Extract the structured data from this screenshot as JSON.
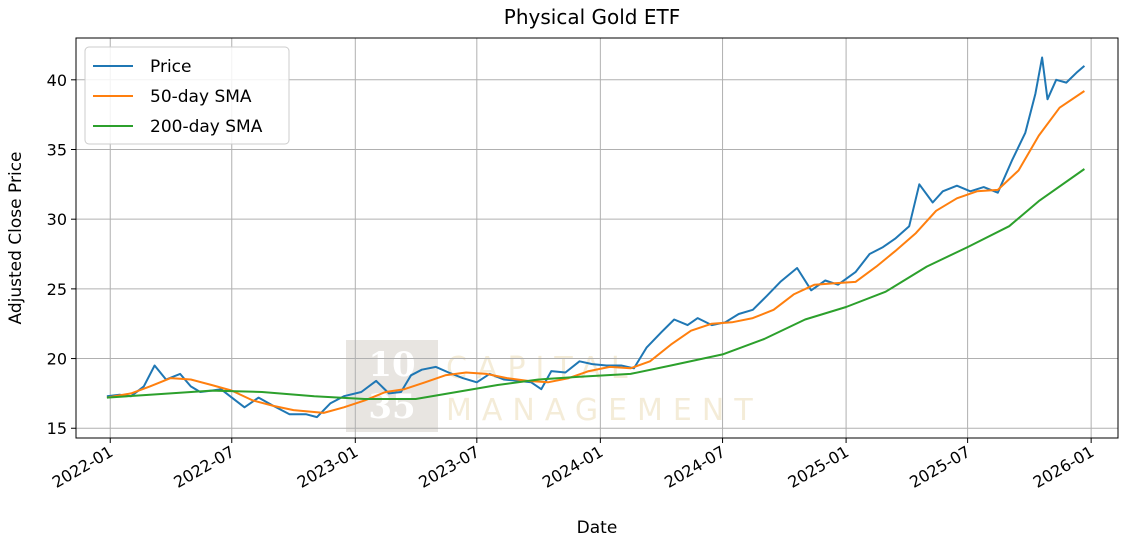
{
  "chart_data": {
    "type": "line",
    "title": "Physical Gold ETF",
    "xlabel": "Date",
    "ylabel": "Adjusted Close Price",
    "x_ticks": [
      "2022-01",
      "2022-07",
      "2023-01",
      "2023-07",
      "2024-01",
      "2024-07",
      "2025-01",
      "2025-07",
      "2026-01"
    ],
    "y_ticks": [
      15,
      20,
      25,
      30,
      35,
      40
    ],
    "xlim": [
      "2021-11-11",
      "2026-02-10"
    ],
    "ylim": [
      14.3,
      43.0
    ],
    "grid": true,
    "legend_position": "top-left",
    "series": [
      {
        "name": "Price",
        "color": "#1f77b4",
        "points": [
          [
            "2021-12-27",
            17.3
          ],
          [
            "2022-01-15",
            17.4
          ],
          [
            "2022-02-01",
            17.3
          ],
          [
            "2022-02-20",
            18.0
          ],
          [
            "2022-03-08",
            19.5
          ],
          [
            "2022-03-25",
            18.5
          ],
          [
            "2022-04-15",
            18.9
          ],
          [
            "2022-05-01",
            18.0
          ],
          [
            "2022-05-15",
            17.6
          ],
          [
            "2022-06-01",
            17.7
          ],
          [
            "2022-06-15",
            17.8
          ],
          [
            "2022-07-01",
            17.2
          ],
          [
            "2022-07-20",
            16.5
          ],
          [
            "2022-08-10",
            17.2
          ],
          [
            "2022-09-01",
            16.6
          ],
          [
            "2022-09-25",
            16.0
          ],
          [
            "2022-10-20",
            16.0
          ],
          [
            "2022-11-05",
            15.8
          ],
          [
            "2022-11-25",
            16.8
          ],
          [
            "2022-12-15",
            17.3
          ],
          [
            "2023-01-10",
            17.6
          ],
          [
            "2023-02-01",
            18.4
          ],
          [
            "2023-02-20",
            17.5
          ],
          [
            "2023-03-10",
            17.6
          ],
          [
            "2023-03-25",
            18.8
          ],
          [
            "2023-04-10",
            19.2
          ],
          [
            "2023-05-01",
            19.4
          ],
          [
            "2023-05-20",
            19.0
          ],
          [
            "2023-06-10",
            18.6
          ],
          [
            "2023-07-01",
            18.3
          ],
          [
            "2023-07-20",
            18.9
          ],
          [
            "2023-08-10",
            18.5
          ],
          [
            "2023-09-01",
            18.4
          ],
          [
            "2023-09-20",
            18.3
          ],
          [
            "2023-10-05",
            17.8
          ],
          [
            "2023-10-20",
            19.1
          ],
          [
            "2023-11-10",
            19.0
          ],
          [
            "2023-12-01",
            19.8
          ],
          [
            "2023-12-20",
            19.6
          ],
          [
            "2024-01-10",
            19.5
          ],
          [
            "2024-02-01",
            19.5
          ],
          [
            "2024-02-20",
            19.3
          ],
          [
            "2024-03-10",
            20.8
          ],
          [
            "2024-04-01",
            21.9
          ],
          [
            "2024-04-20",
            22.8
          ],
          [
            "2024-05-10",
            22.4
          ],
          [
            "2024-05-25",
            22.9
          ],
          [
            "2024-06-15",
            22.4
          ],
          [
            "2024-07-05",
            22.6
          ],
          [
            "2024-07-25",
            23.2
          ],
          [
            "2024-08-15",
            23.5
          ],
          [
            "2024-09-05",
            24.5
          ],
          [
            "2024-09-25",
            25.5
          ],
          [
            "2024-10-20",
            26.5
          ],
          [
            "2024-11-10",
            24.9
          ],
          [
            "2024-12-01",
            25.6
          ],
          [
            "2024-12-20",
            25.3
          ],
          [
            "2025-01-15",
            26.2
          ],
          [
            "2025-02-05",
            27.5
          ],
          [
            "2025-02-25",
            28.0
          ],
          [
            "2025-03-15",
            28.6
          ],
          [
            "2025-04-05",
            29.5
          ],
          [
            "2025-04-20",
            32.5
          ],
          [
            "2025-05-10",
            31.2
          ],
          [
            "2025-05-25",
            32.0
          ],
          [
            "2025-06-15",
            32.4
          ],
          [
            "2025-07-05",
            32.0
          ],
          [
            "2025-07-25",
            32.3
          ],
          [
            "2025-08-15",
            31.9
          ],
          [
            "2025-09-05",
            34.2
          ],
          [
            "2025-09-25",
            36.2
          ],
          [
            "2025-10-10",
            39.0
          ],
          [
            "2025-10-20",
            41.6
          ],
          [
            "2025-10-28",
            38.6
          ],
          [
            "2025-11-10",
            40.0
          ],
          [
            "2025-11-25",
            39.8
          ],
          [
            "2025-12-10",
            40.5
          ],
          [
            "2025-12-22",
            41.0
          ]
        ]
      },
      {
        "name": "50-day SMA",
        "color": "#ff7f0e",
        "points": [
          [
            "2021-12-27",
            17.2
          ],
          [
            "2022-02-01",
            17.5
          ],
          [
            "2022-03-01",
            18.0
          ],
          [
            "2022-04-01",
            18.6
          ],
          [
            "2022-05-01",
            18.5
          ],
          [
            "2022-06-01",
            18.1
          ],
          [
            "2022-07-01",
            17.7
          ],
          [
            "2022-08-01",
            17.0
          ],
          [
            "2022-09-01",
            16.6
          ],
          [
            "2022-10-01",
            16.3
          ],
          [
            "2022-11-15",
            16.1
          ],
          [
            "2022-12-15",
            16.5
          ],
          [
            "2023-01-15",
            17.0
          ],
          [
            "2023-02-15",
            17.6
          ],
          [
            "2023-03-15",
            17.8
          ],
          [
            "2023-04-15",
            18.3
          ],
          [
            "2023-05-15",
            18.8
          ],
          [
            "2023-06-15",
            19.0
          ],
          [
            "2023-07-15",
            18.9
          ],
          [
            "2023-08-15",
            18.6
          ],
          [
            "2023-09-15",
            18.4
          ],
          [
            "2023-10-15",
            18.3
          ],
          [
            "2023-11-15",
            18.6
          ],
          [
            "2023-12-15",
            19.1
          ],
          [
            "2024-01-15",
            19.4
          ],
          [
            "2024-02-15",
            19.3
          ],
          [
            "2024-03-15",
            19.8
          ],
          [
            "2024-04-15",
            21.0
          ],
          [
            "2024-05-15",
            22.0
          ],
          [
            "2024-06-15",
            22.5
          ],
          [
            "2024-07-15",
            22.6
          ],
          [
            "2024-08-15",
            22.9
          ],
          [
            "2024-09-15",
            23.5
          ],
          [
            "2024-10-15",
            24.6
          ],
          [
            "2024-11-15",
            25.3
          ],
          [
            "2024-12-15",
            25.4
          ],
          [
            "2025-01-15",
            25.5
          ],
          [
            "2025-02-15",
            26.6
          ],
          [
            "2025-03-15",
            27.7
          ],
          [
            "2025-04-15",
            29.0
          ],
          [
            "2025-05-15",
            30.6
          ],
          [
            "2025-06-15",
            31.5
          ],
          [
            "2025-07-15",
            32.0
          ],
          [
            "2025-08-15",
            32.1
          ],
          [
            "2025-09-15",
            33.5
          ],
          [
            "2025-10-15",
            36.0
          ],
          [
            "2025-11-15",
            38.0
          ],
          [
            "2025-12-22",
            39.2
          ]
        ]
      },
      {
        "name": "200-day SMA",
        "color": "#2ca02c",
        "points": [
          [
            "2021-12-27",
            17.2
          ],
          [
            "2022-03-01",
            17.4
          ],
          [
            "2022-06-01",
            17.7
          ],
          [
            "2022-08-15",
            17.6
          ],
          [
            "2022-11-01",
            17.3
          ],
          [
            "2023-01-15",
            17.1
          ],
          [
            "2023-04-01",
            17.1
          ],
          [
            "2023-06-01",
            17.6
          ],
          [
            "2023-08-01",
            18.1
          ],
          [
            "2023-10-01",
            18.5
          ],
          [
            "2023-12-01",
            18.7
          ],
          [
            "2024-02-15",
            18.9
          ],
          [
            "2024-04-15",
            19.5
          ],
          [
            "2024-07-01",
            20.3
          ],
          [
            "2024-09-01",
            21.4
          ],
          [
            "2024-11-01",
            22.8
          ],
          [
            "2025-01-01",
            23.7
          ],
          [
            "2025-03-01",
            24.8
          ],
          [
            "2025-05-01",
            26.6
          ],
          [
            "2025-07-01",
            28.0
          ],
          [
            "2025-09-01",
            29.5
          ],
          [
            "2025-10-15",
            31.3
          ],
          [
            "2025-12-22",
            33.6
          ]
        ]
      }
    ]
  },
  "watermark": {
    "numeral_top": "10",
    "numeral_bottom": "35",
    "word_top": "CAPITAL",
    "word_bottom": "MANAGEMENT"
  }
}
